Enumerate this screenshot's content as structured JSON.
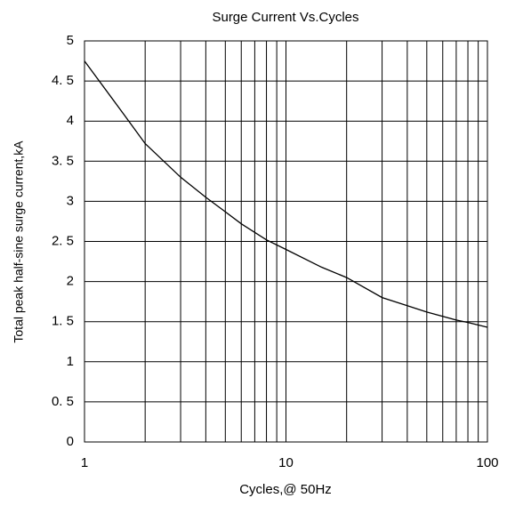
{
  "chart_data": {
    "type": "line",
    "title": "Surge Current Vs.Cycles",
    "x_label": "Cycles,@ 50Hz",
    "y_label": "Total peak half-sine surge current,kA",
    "x": [
      1,
      1.5,
      2,
      3,
      4,
      5,
      6,
      8,
      10,
      15,
      20,
      30,
      40,
      50,
      70,
      80,
      100
    ],
    "series": [
      {
        "name": "Surge current",
        "color": "#000000",
        "values": [
          4.75,
          4.15,
          3.72,
          3.3,
          3.05,
          2.87,
          2.72,
          2.52,
          2.4,
          2.18,
          2.05,
          1.8,
          1.7,
          1.62,
          1.52,
          1.49,
          1.43
        ]
      }
    ],
    "xlim": [
      1,
      100
    ],
    "xticks": [
      1,
      10,
      100
    ],
    "xscale": "log",
    "ylim": [
      0,
      5
    ],
    "yticks": [
      0,
      {
        "value": 0.5,
        "label": "0. 5"
      },
      1,
      {
        "value": 1.5,
        "label": "1. 5"
      },
      2,
      {
        "value": 2.5,
        "label": "2. 5"
      },
      3,
      {
        "value": 3.5,
        "label": "3. 5"
      },
      4,
      {
        "value": 4.5,
        "label": "4. 5"
      },
      5
    ],
    "grid": true,
    "minor_grid": true
  }
}
